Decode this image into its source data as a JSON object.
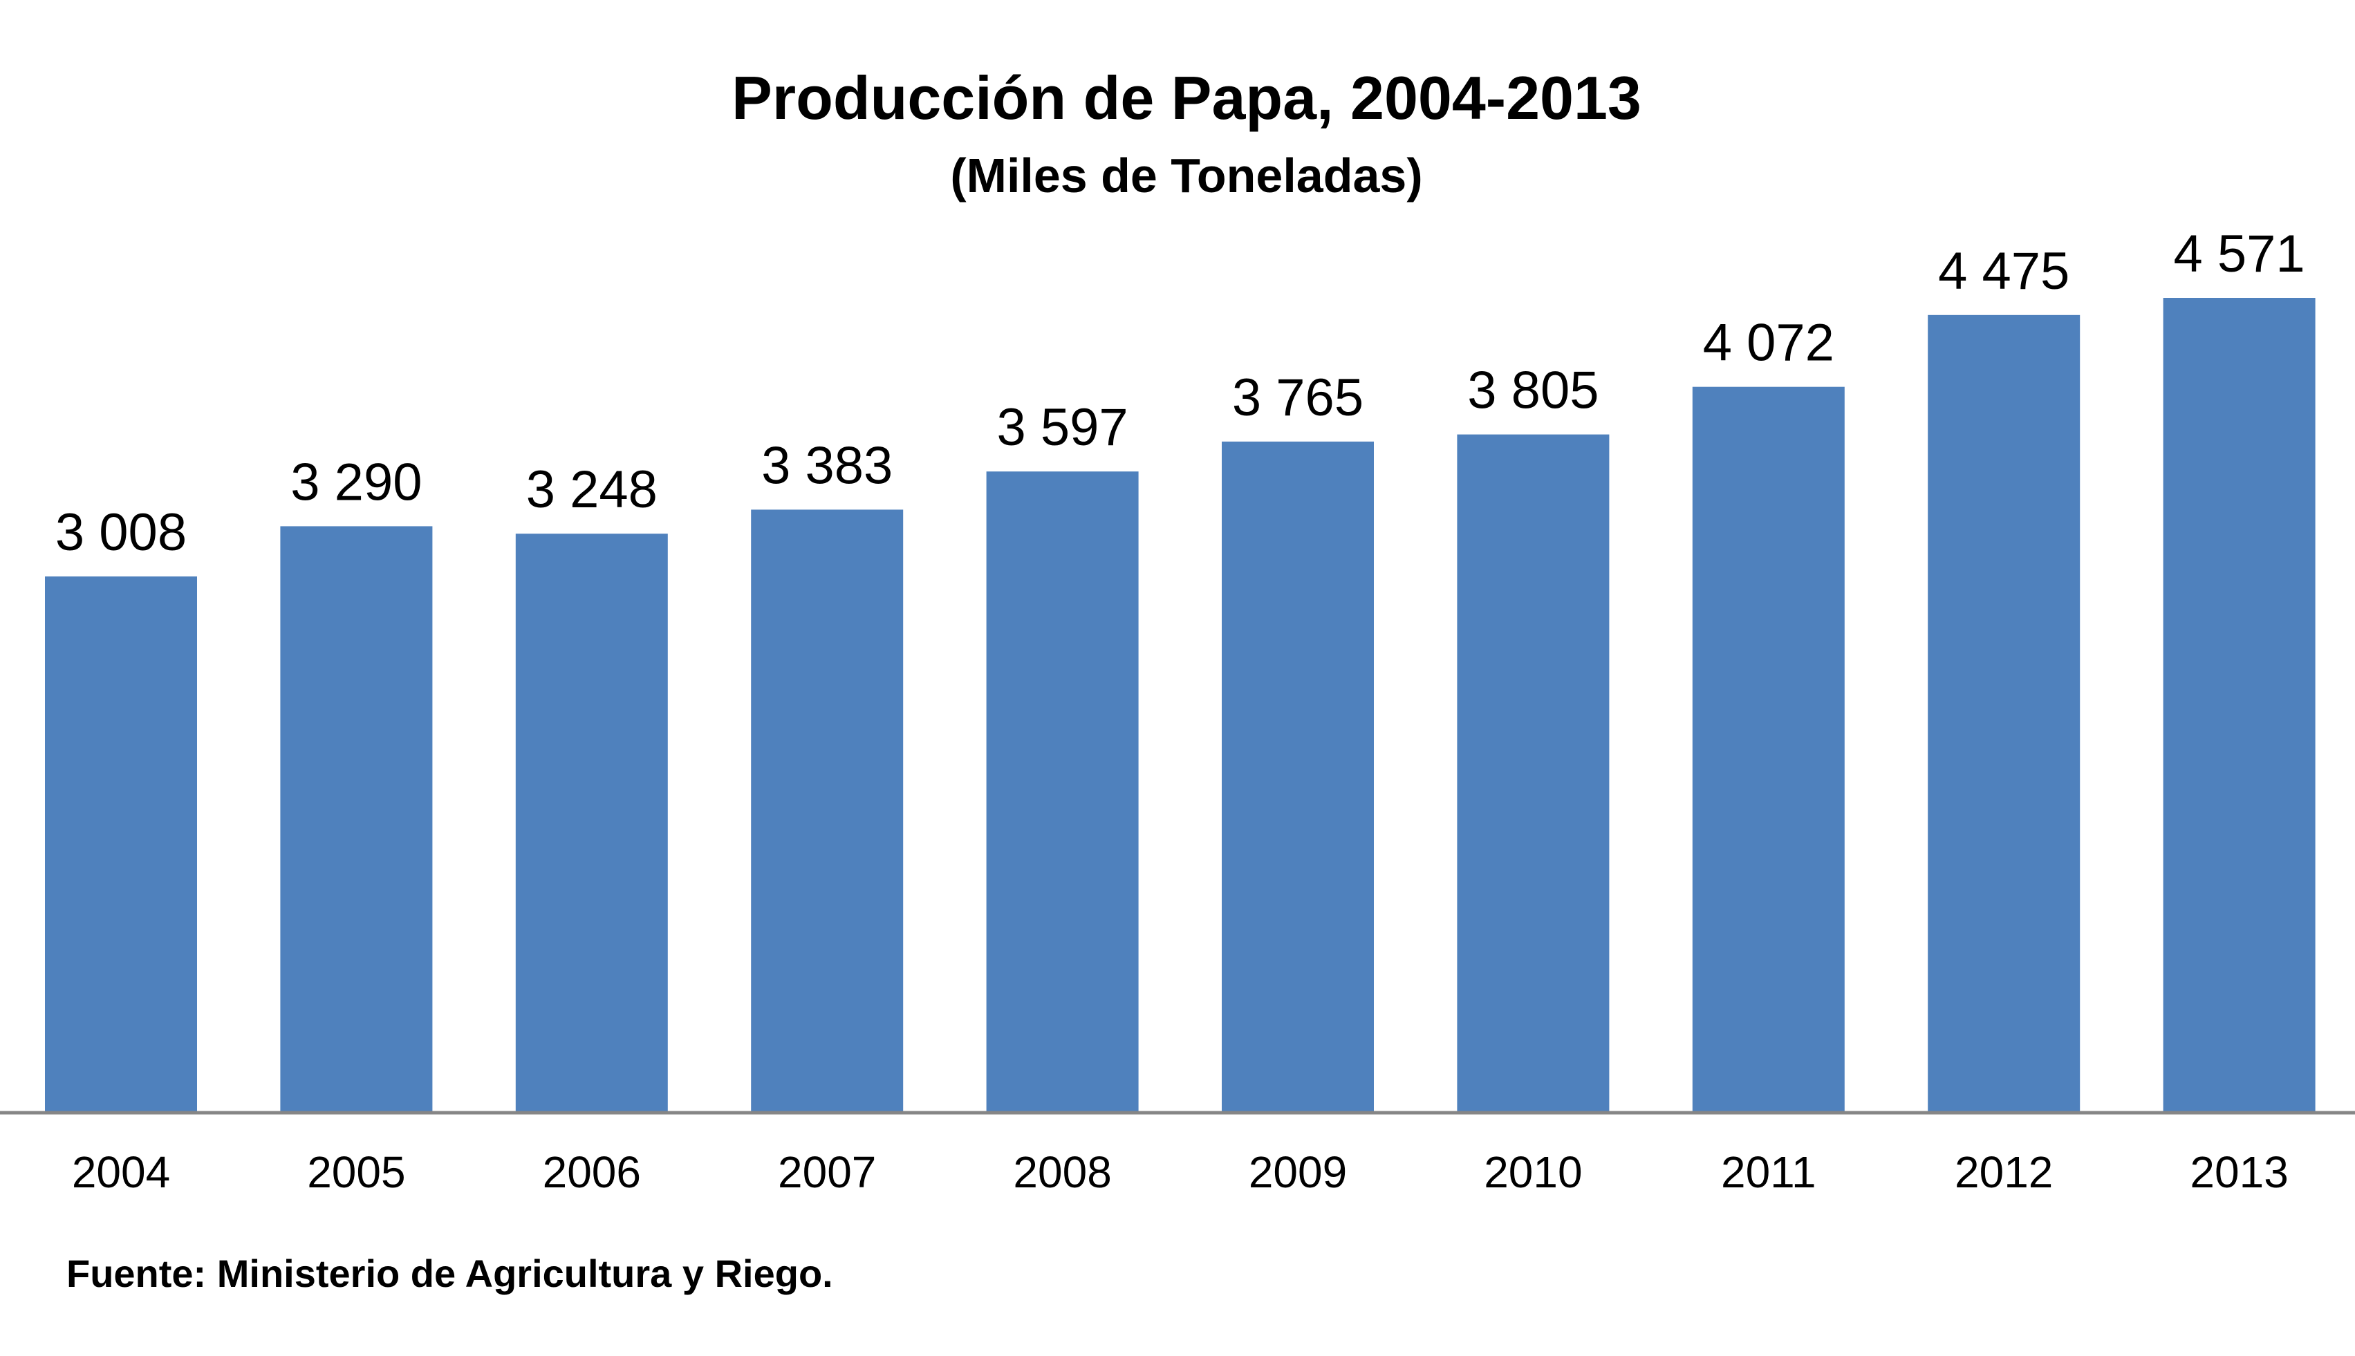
{
  "chart_data": {
    "type": "bar",
    "title": "Producción de Papa, 2004-2013",
    "subtitle": "(Miles de Toneladas)",
    "categories": [
      "2004",
      "2005",
      "2006",
      "2007",
      "2008",
      "2009",
      "2010",
      "2011",
      "2012",
      "2013"
    ],
    "values": [
      3008,
      3290,
      3248,
      3383,
      3597,
      3765,
      3805,
      4072,
      4475,
      4571
    ],
    "value_labels": [
      "3 008",
      "3 290",
      "3 248",
      "3 383",
      "3 597",
      "3 765",
      "3 805",
      "4 072",
      "4 475",
      "4 571"
    ],
    "ylim": [
      0,
      4571
    ],
    "grid": false,
    "legend": "none",
    "bar_color": "#4F81BD",
    "axis_color": "#868686"
  },
  "source": "Fuente: Ministerio de Agricultura y Riego."
}
